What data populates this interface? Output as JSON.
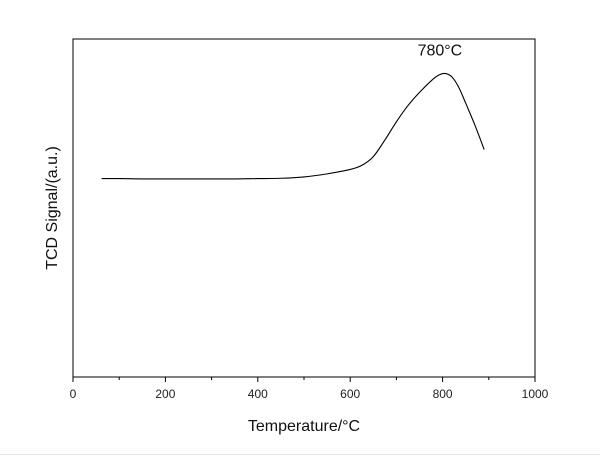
{
  "chart_data": {
    "type": "line",
    "title": "",
    "xlabel": "Temperature/°C",
    "ylabel": "TCD Signal/(a.u.)",
    "xlim": [
      0,
      1000
    ],
    "ylim": [
      0,
      1
    ],
    "x_ticks": [
      0,
      200,
      400,
      600,
      800,
      1000
    ],
    "x_tick_labels": [
      "0",
      "200",
      "400",
      "600",
      "800",
      "1000"
    ],
    "y_ticks_labeled": false,
    "grid": false,
    "legend": "none",
    "line_color": "#000000",
    "annotations": [
      {
        "text": "780°C",
        "x": 805,
        "y": 0.925
      }
    ],
    "series": [
      {
        "x": [
          62,
          100,
          150,
          200,
          250,
          300,
          350,
          400,
          450,
          500,
          550,
          600,
          625,
          650,
          675,
          700,
          725,
          750,
          775,
          790,
          805,
          820,
          835,
          850,
          870,
          890
        ],
        "y": [
          0.587,
          0.587,
          0.586,
          0.586,
          0.586,
          0.586,
          0.586,
          0.587,
          0.588,
          0.592,
          0.601,
          0.614,
          0.626,
          0.652,
          0.701,
          0.755,
          0.803,
          0.842,
          0.876,
          0.892,
          0.898,
          0.888,
          0.857,
          0.81,
          0.745,
          0.673
        ]
      }
    ]
  }
}
